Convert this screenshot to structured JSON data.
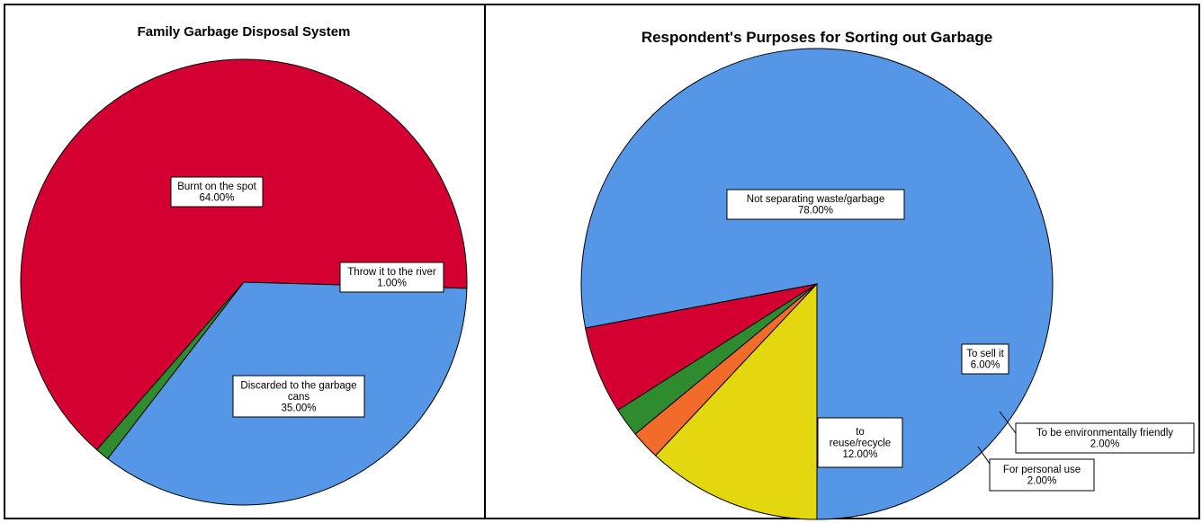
{
  "chart_data": [
    {
      "type": "pie",
      "title": "Family Garbage Disposal System",
      "slices": [
        {
          "label": "Burnt on the spot",
          "value_label": "64.00%",
          "value": 64.0,
          "color": "#D50032"
        },
        {
          "label": "Throw it to the river",
          "value_label": "1.00%",
          "value": 1.0,
          "color": "#2E8B2E"
        },
        {
          "label": "Discarded to the garbage cans",
          "value_label": "35.00%",
          "value": 35.0,
          "color": "#5596E6"
        }
      ]
    },
    {
      "type": "pie",
      "title": "Respondent's Purposes for Sorting out Garbage",
      "slices": [
        {
          "label": "Not separating waste/garbage",
          "value_label": "78.00%",
          "value": 78.0,
          "color": "#5596E6"
        },
        {
          "label": "To sell it",
          "value_label": "6.00%",
          "value": 6.0,
          "color": "#D50032"
        },
        {
          "label": "To be environmentally friendly",
          "value_label": "2.00%",
          "value": 2.0,
          "color": "#2E8B2E"
        },
        {
          "label": "For personal use",
          "value_label": "2.00%",
          "value": 2.0,
          "color": "#F26B2A"
        },
        {
          "label": "to reuse/recycle",
          "value_label": "12.00%",
          "value": 12.0,
          "color": "#E3D80F"
        }
      ]
    }
  ]
}
